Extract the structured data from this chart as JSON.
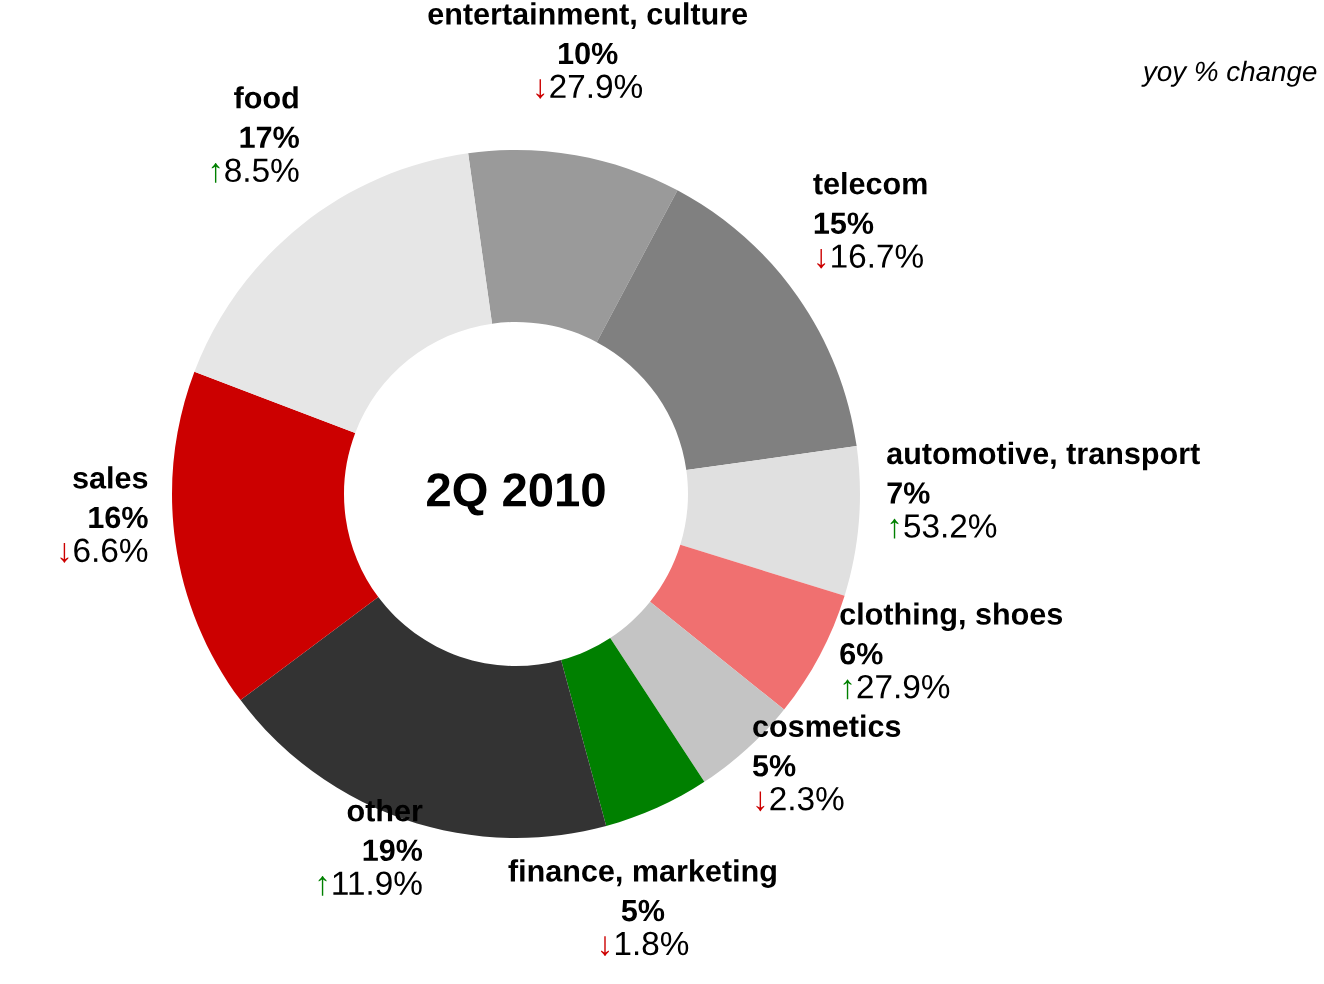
{
  "chart_data": {
    "type": "donut",
    "title": "2Q 2010",
    "categories": [
      "entertainment, culture",
      "telecom",
      "automotive, transport",
      "clothing, shoes",
      "cosmetics",
      "finance, marketing",
      "other",
      "sales",
      "food"
    ],
    "values": [
      10,
      15,
      7,
      6,
      5,
      5,
      19,
      16,
      17
    ],
    "value_labels": [
      "10%",
      "15%",
      "7%",
      "6%",
      "5%",
      "5%",
      "19%",
      "16%",
      "17%"
    ],
    "colors": [
      "#9a9a9a",
      "#808080",
      "#e0e0e0",
      "#f07070",
      "#c4c4c4",
      "#008000",
      "#333333",
      "#cc0000",
      "#e6e6e6"
    ],
    "annotations": [
      {
        "text": "↓27.9%",
        "x": "entertainment, culture"
      },
      {
        "text": "↓16.7%",
        "x": "telecom"
      },
      {
        "text": "↑53.2%",
        "x": "automotive, transport"
      },
      {
        "text": "↑27.9%",
        "x": "clothing, shoes"
      },
      {
        "text": "↓2.3%",
        "x": "cosmetics"
      },
      {
        "text": "↓1.8%",
        "x": "finance, marketing"
      },
      {
        "text": "↑11.9%",
        "x": "other"
      },
      {
        "text": "↓6.6%",
        "x": "sales"
      },
      {
        "text": "↑8.5%",
        "x": "food"
      },
      "yoy % change"
    ],
    "legend": false
  }
}
